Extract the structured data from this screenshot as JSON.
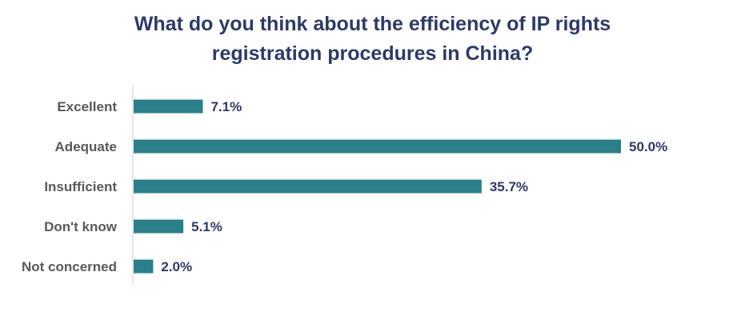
{
  "chart_data": {
    "type": "bar",
    "orientation": "horizontal",
    "title_lines": [
      "What do you think about the efficiency of IP rights",
      "registration procedures in China?"
    ],
    "categories": [
      "Excellent",
      "Adequate",
      "Insufficient",
      "Don't know",
      "Not concerned"
    ],
    "values": [
      7.1,
      50.0,
      35.7,
      5.1,
      2.0
    ],
    "value_labels": [
      "7.1%",
      "50.0%",
      "35.7%",
      "5.1%",
      "2.0%"
    ],
    "xlim": [
      0,
      50
    ],
    "grid": false,
    "legend": "none",
    "colors": {
      "bar": "#2a7f89",
      "axis": "#d0d0d0"
    }
  }
}
